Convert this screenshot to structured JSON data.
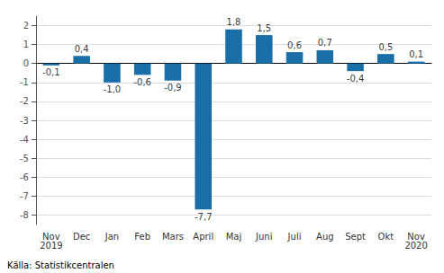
{
  "chart_data": {
    "type": "bar",
    "categories": [
      "Nov\n2019",
      "Dec",
      "Jan",
      "Feb",
      "Mars",
      "April",
      "Maj",
      "Juni",
      "Juli",
      "Aug",
      "Sept",
      "Okt",
      "Nov\n2020"
    ],
    "values": [
      -0.1,
      0.4,
      -1.0,
      -0.6,
      -0.9,
      -7.7,
      1.8,
      1.5,
      0.6,
      0.7,
      -0.4,
      0.5,
      0.1
    ],
    "value_labels": [
      "-0,1",
      "0,4",
      "-1,0",
      "-0,6",
      "-0,9",
      "-7,7",
      "1,8",
      "1,5",
      "0,6",
      "0,7",
      "-0,4",
      "0,5",
      "0,1"
    ],
    "data_labels": true,
    "color": "#1a6ea8",
    "ylim": [
      -8.5,
      2.5
    ],
    "yticks": [
      -8,
      -7,
      -6,
      -5,
      -4,
      -3,
      -2,
      -1,
      0,
      1,
      2
    ],
    "grid": true,
    "annotations": [
      "Källa: Statistikcentralen"
    ]
  }
}
